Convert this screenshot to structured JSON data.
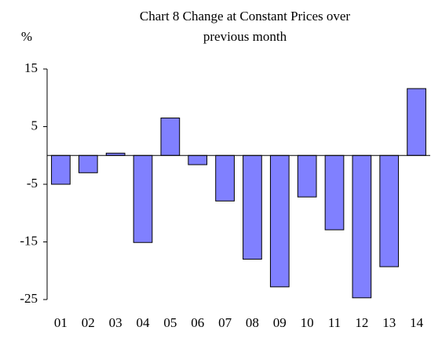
{
  "chart_data": {
    "type": "bar",
    "title": "Chart 8  Change at Constant Prices over",
    "subtitle": "previous month",
    "y_label": "%",
    "categories": [
      "01",
      "02",
      "03",
      "04",
      "05",
      "06",
      "07",
      "08",
      "09",
      "10",
      "11",
      "12",
      "13",
      "14"
    ],
    "values": [
      -5.0,
      -3.0,
      0.4,
      -15.1,
      6.5,
      -1.6,
      -7.9,
      -18.0,
      -22.8,
      -7.2,
      -12.9,
      -24.7,
      -19.3,
      11.6
    ],
    "color": "#8080ff",
    "ylim": [
      -25,
      15
    ],
    "yticks": [
      15,
      5,
      -5,
      -15,
      -25
    ],
    "grid": false
  }
}
